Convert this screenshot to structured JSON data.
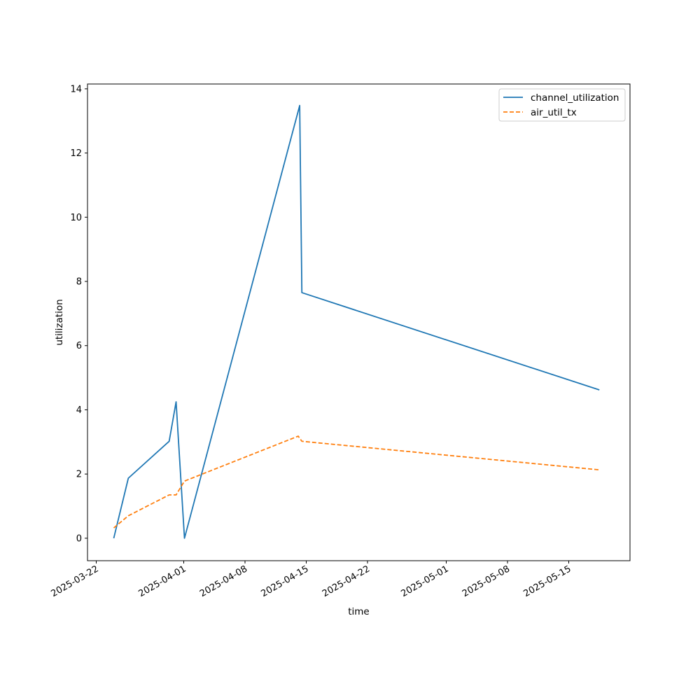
{
  "chart_data": {
    "type": "line",
    "xlabel": "time",
    "ylabel": "utilization",
    "x_scale": "date",
    "xlim": [
      "2025-03-21",
      "2025-05-22"
    ],
    "ylim": [
      -0.7,
      14.15
    ],
    "x_ticks": [
      "2025-03-22",
      "2025-04-01",
      "2025-04-08",
      "2025-04-15",
      "2025-04-22",
      "2025-05-01",
      "2025-05-08",
      "2025-05-15"
    ],
    "y_ticks": [
      "0",
      "2",
      "4",
      "6",
      "8",
      "10",
      "12",
      "14"
    ],
    "grid": false,
    "legend_position": "top-right",
    "series": [
      {
        "name": "channel_utilization",
        "color": "#1f77b4",
        "style": "solid",
        "points": [
          [
            "2025-03-24T00:00",
            0.0
          ],
          [
            "2025-03-25T16:00",
            1.87
          ],
          [
            "2025-03-30T08:00",
            3.02
          ],
          [
            "2025-03-31T03:00",
            4.25
          ],
          [
            "2025-04-01T02:00",
            0.0
          ],
          [
            "2025-04-14T06:00",
            13.48
          ],
          [
            "2025-04-14T12:00",
            7.65
          ],
          [
            "2025-05-18T12:00",
            4.62
          ]
        ]
      },
      {
        "name": "air_util_tx",
        "color": "#ff7f0e",
        "style": "dashed",
        "points": [
          [
            "2025-03-24T00:00",
            0.32
          ],
          [
            "2025-03-25T16:00",
            0.7
          ],
          [
            "2025-03-30T08:00",
            1.35
          ],
          [
            "2025-03-31T03:00",
            1.35
          ],
          [
            "2025-04-01T02:00",
            1.78
          ],
          [
            "2025-04-14T02:00",
            3.18
          ],
          [
            "2025-04-14T12:00",
            3.02
          ],
          [
            "2025-05-18T12:00",
            2.13
          ]
        ]
      }
    ]
  }
}
